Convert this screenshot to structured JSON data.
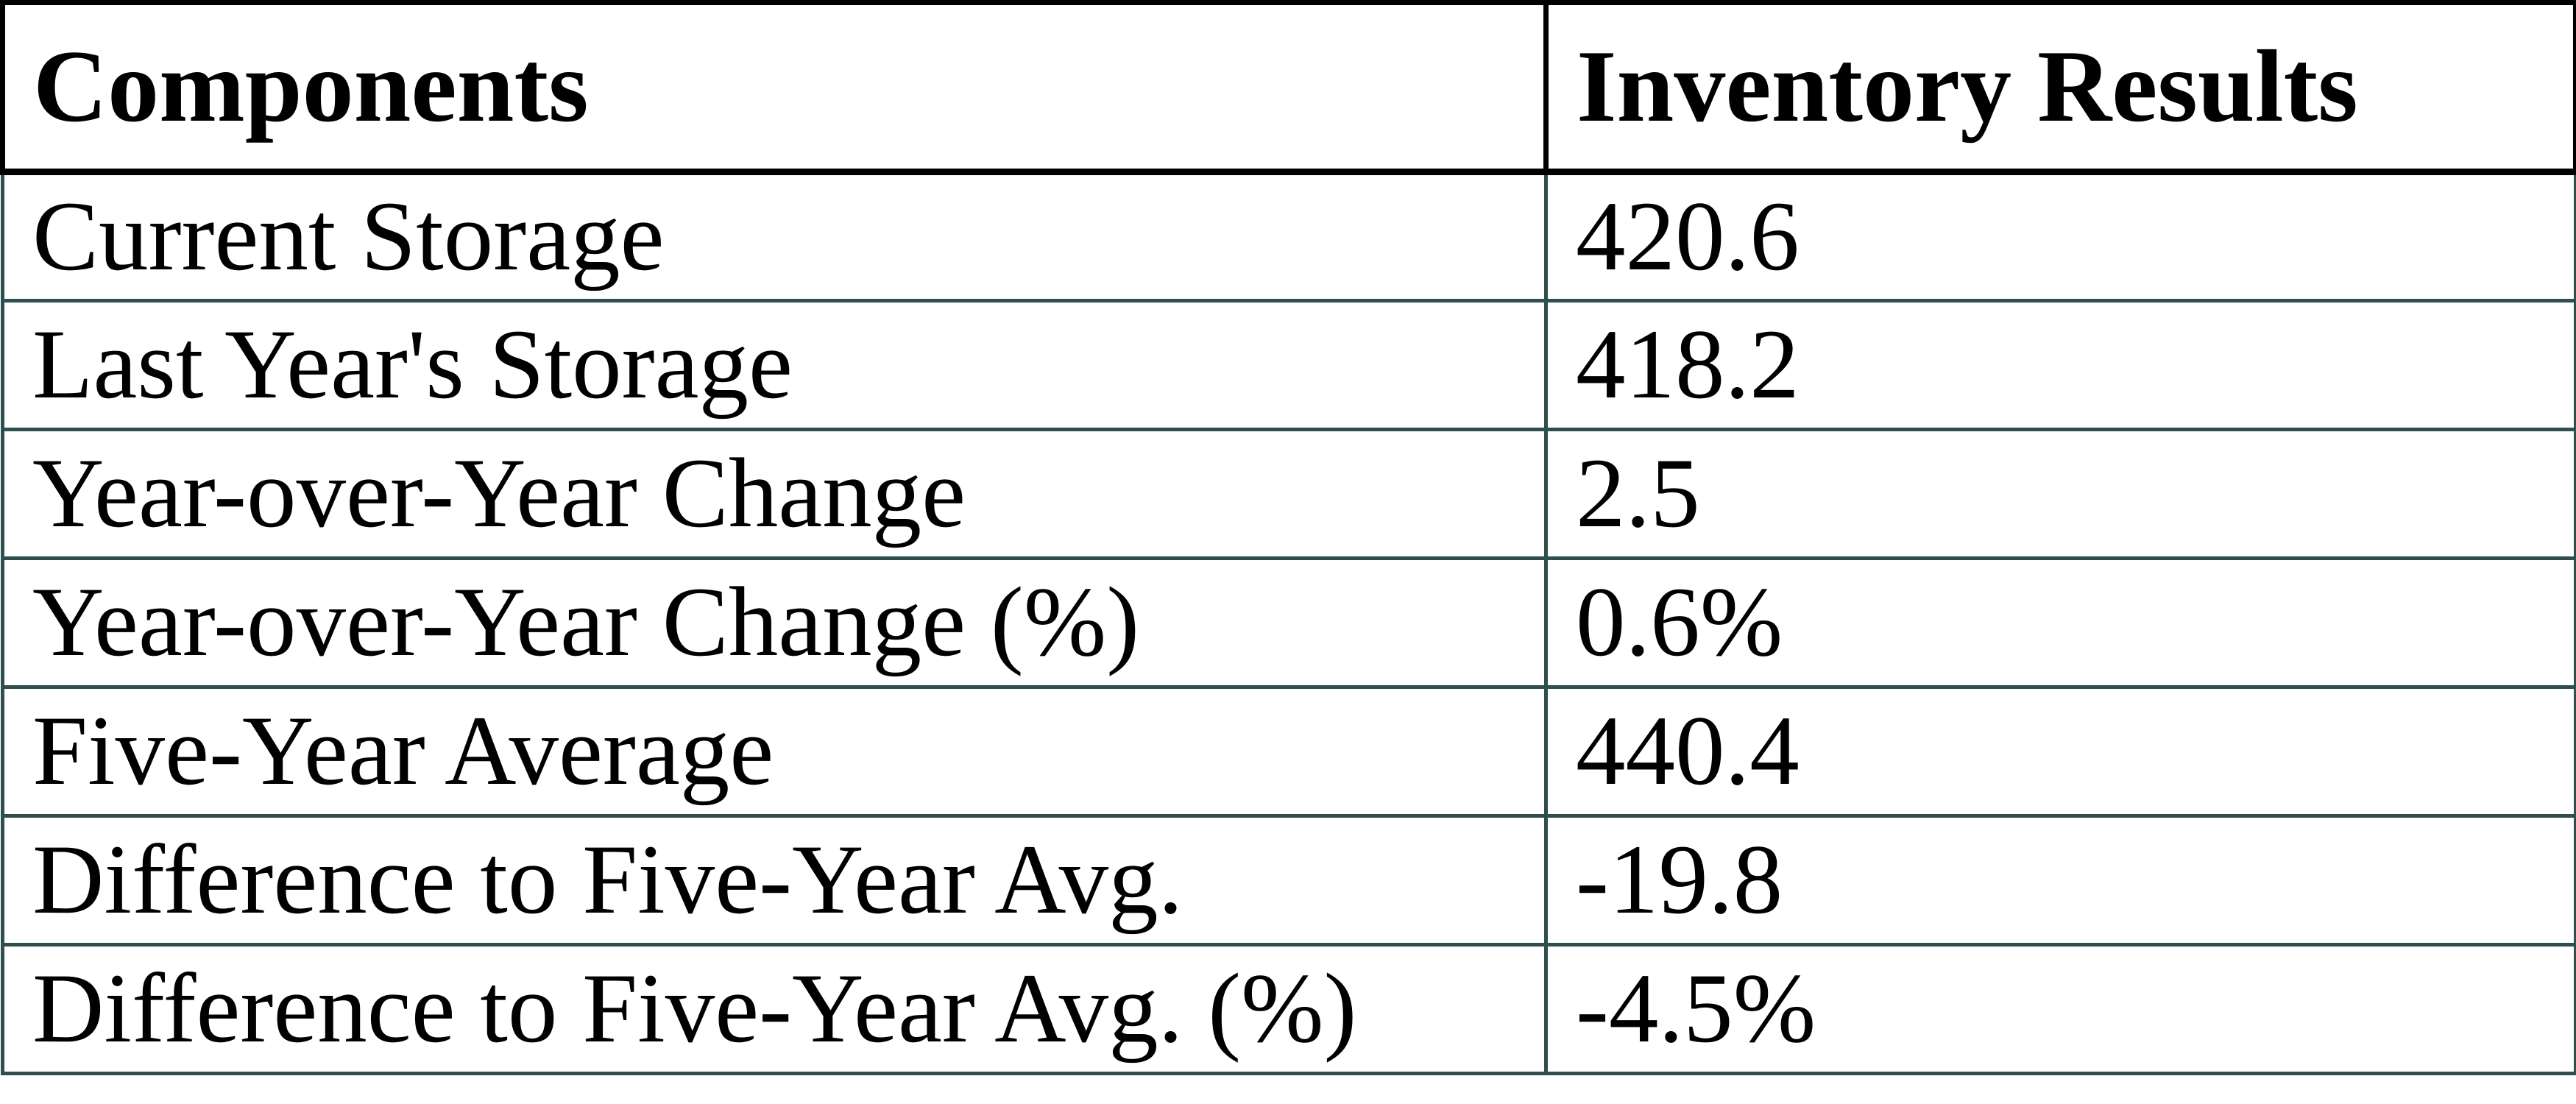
{
  "chart_data": {
    "type": "table",
    "columns": [
      "Components",
      "Inventory Results"
    ],
    "rows": [
      {
        "label": "Current Storage",
        "value": "420.6"
      },
      {
        "label": "Last Year's Storage",
        "value": "418.2"
      },
      {
        "label": "Year-over-Year Change",
        "value": "2.5"
      },
      {
        "label": "Year-over-Year Change (%)",
        "value": "0.6%"
      },
      {
        "label": "Five-Year Average",
        "value": "440.4"
      },
      {
        "label": "Difference to Five-Year Avg.",
        "value": "-19.8"
      },
      {
        "label": "Difference to Five-Year Avg. (%)",
        "value": "-4.5%"
      }
    ],
    "layout": {
      "header_border_color": "#000000",
      "body_border_color": "#2F4F4F",
      "text_color": "#000000",
      "background_color": "#FFFFFF"
    }
  }
}
